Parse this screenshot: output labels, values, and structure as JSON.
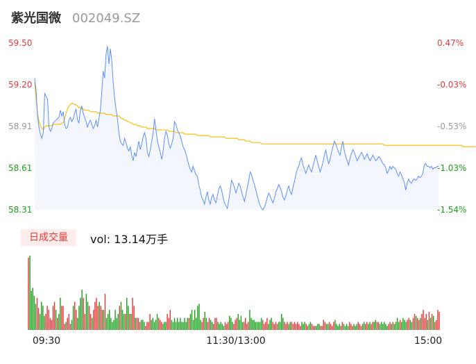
{
  "header": {
    "name": "紫光国微",
    "code": "002049.SZ"
  },
  "volume": {
    "tab_label": "日成交量",
    "readout": "vol: 13.14万手"
  },
  "colors": {
    "price": "#5b8ff9",
    "avg": "#f6bd16",
    "up": "#e03a3a",
    "down": "#1aa01a",
    "area": "#f3f6fd"
  },
  "chart_data": [
    {
      "type": "line",
      "title": "",
      "y_ticks_left": [
        "59.50",
        "59.20",
        "58.91",
        "58.61",
        "58.31"
      ],
      "y_ticks_right": [
        "0.47%",
        "-0.03%",
        "-0.53%",
        "-1.03%",
        "-1.54%"
      ],
      "ylim": [
        58.31,
        59.5
      ],
      "x_ticks": [
        "09:30",
        "11:30/13:00",
        "15:00"
      ],
      "series": [
        {
          "key": "price",
          "values": [
            59.25,
            59.16,
            58.98,
            58.9,
            58.85,
            58.82,
            58.86,
            59.14,
            59.12,
            59.1,
            58.9,
            58.87,
            58.89,
            58.93,
            58.94,
            58.95,
            58.96,
            58.97,
            59.02,
            58.98,
            59.01,
            58.92,
            58.89,
            58.9,
            58.95,
            58.97,
            58.94,
            58.96,
            59.0,
            59.03,
            58.95,
            58.93,
            59.02,
            59.05,
            59.0,
            58.97,
            58.94,
            58.9,
            58.93,
            58.95,
            58.92,
            58.89,
            58.91,
            58.95,
            58.9,
            58.96,
            59.02,
            59.15,
            59.3,
            59.25,
            59.42,
            59.48,
            59.35,
            59.46,
            59.38,
            59.22,
            59.11,
            59.03,
            58.96,
            58.86,
            58.8,
            58.78,
            58.77,
            58.82,
            58.79,
            58.75,
            58.73,
            58.76,
            58.7,
            58.66,
            58.72,
            58.69,
            58.75,
            58.8,
            58.74,
            58.78,
            58.83,
            58.86,
            58.82,
            58.72,
            58.69,
            58.74,
            58.8,
            58.86,
            58.96,
            58.88,
            58.8,
            58.76,
            58.72,
            58.67,
            58.73,
            58.82,
            58.87,
            58.84,
            58.78,
            58.75,
            58.78,
            58.82,
            58.94,
            58.92,
            58.88,
            58.86,
            58.84,
            58.8,
            58.76,
            58.74,
            58.71,
            58.67,
            58.63,
            58.6,
            58.58,
            58.62,
            58.59,
            58.56,
            58.55,
            58.49,
            58.45,
            58.4,
            58.38,
            58.35,
            58.4,
            58.44,
            58.38,
            58.35,
            58.4,
            58.42,
            58.38,
            58.36,
            58.41,
            58.46,
            58.48,
            58.45,
            58.4,
            58.36,
            58.34,
            58.32,
            58.38,
            58.45,
            58.52,
            58.5,
            58.47,
            58.43,
            58.46,
            58.5,
            58.48,
            58.44,
            58.4,
            58.37,
            58.42,
            58.47,
            58.52,
            58.58,
            58.56,
            58.52,
            58.49,
            58.45,
            58.41,
            58.37,
            58.34,
            58.32,
            58.31,
            58.33,
            58.36,
            58.4,
            58.43,
            58.41,
            58.38,
            58.36,
            58.39,
            58.44,
            58.46,
            58.49,
            58.47,
            58.44,
            58.4,
            58.38,
            58.41,
            58.45,
            58.48,
            58.44,
            58.42,
            58.47,
            58.51,
            58.56,
            58.6,
            58.62,
            58.66,
            58.68,
            58.63,
            58.6,
            58.57,
            58.6,
            58.63,
            58.6,
            58.58,
            58.62,
            58.66,
            58.7,
            58.66,
            58.62,
            58.58,
            58.61,
            58.65,
            58.7,
            58.74,
            58.68,
            58.64,
            58.67,
            58.72,
            58.76,
            58.8,
            58.78,
            58.75,
            58.72,
            58.7,
            58.76,
            58.8,
            58.73,
            58.69,
            58.66,
            58.63,
            58.68,
            58.71,
            58.74,
            58.72,
            58.69,
            58.66,
            58.68,
            58.7,
            58.72,
            58.7,
            58.67,
            58.69,
            58.71,
            58.68,
            58.66,
            58.68,
            58.7,
            58.68,
            58.66,
            58.67,
            58.69,
            58.68,
            58.66,
            58.64,
            58.63,
            58.61,
            58.57,
            58.59,
            58.62,
            58.6,
            58.62,
            58.61,
            58.6,
            58.57,
            58.55,
            58.58,
            58.56,
            58.53,
            58.51,
            58.45,
            58.5,
            58.53,
            58.51,
            58.5,
            58.52,
            58.53,
            58.52,
            58.53,
            58.55,
            58.54,
            58.55,
            58.57,
            58.63,
            58.64,
            58.62,
            58.62,
            58.61,
            58.62,
            58.6,
            58.61,
            58.61,
            58.62,
            58.62
          ]
        },
        {
          "key": "avg",
          "values": [
            59.22,
            59.1,
            59.0,
            58.94,
            58.91,
            58.89,
            58.88,
            58.9,
            58.91,
            58.91,
            58.91,
            58.91,
            58.91,
            58.92,
            58.92,
            58.92,
            58.92,
            58.92,
            58.92,
            58.93,
            58.93,
            58.96,
            59.0,
            59.03,
            59.05,
            59.06,
            59.07,
            59.07,
            59.06,
            59.06,
            59.05,
            59.04,
            59.04,
            59.03,
            59.03,
            59.02,
            59.02,
            59.02,
            59.02,
            59.01,
            59.01,
            59.01,
            59.01,
            59.01,
            59.0,
            59.0,
            59.0,
            59.0,
            59.0,
            59.0,
            58.99,
            58.99,
            58.99,
            58.99,
            58.99,
            58.98,
            58.98,
            58.98,
            58.98,
            58.98,
            58.97,
            58.96,
            58.96,
            58.95,
            58.95,
            58.94,
            58.94,
            58.93,
            58.93,
            58.92,
            58.92,
            58.92,
            58.91,
            58.91,
            58.91,
            58.9,
            58.9,
            58.9,
            58.9,
            58.89,
            58.89,
            58.89,
            58.89,
            58.89,
            58.89,
            58.88,
            58.88,
            58.88,
            58.88,
            58.88,
            58.88,
            58.88,
            58.88,
            58.88,
            58.87,
            58.87,
            58.87,
            58.87,
            58.87,
            58.86,
            58.86,
            58.86,
            58.86,
            58.86,
            58.86,
            58.85,
            58.85,
            58.85,
            58.85,
            58.85,
            58.85,
            58.85,
            58.85,
            58.85,
            58.84,
            58.84,
            58.84,
            58.84,
            58.84,
            58.84,
            58.84,
            58.84,
            58.84,
            58.83,
            58.83,
            58.83,
            58.83,
            58.83,
            58.83,
            58.83,
            58.83,
            58.83,
            58.83,
            58.83,
            58.82,
            58.82,
            58.82,
            58.82,
            58.82,
            58.82,
            58.82,
            58.82,
            58.82,
            58.81,
            58.81,
            58.81,
            58.81,
            58.81,
            58.8,
            58.8,
            58.8,
            58.8,
            58.79,
            58.79,
            58.79,
            58.79,
            58.79,
            58.79,
            58.79,
            58.78,
            58.78,
            58.78,
            58.78,
            58.78,
            58.78,
            58.78,
            58.78,
            58.78,
            58.78,
            58.78,
            58.78,
            58.78,
            58.78,
            58.78,
            58.78,
            58.78,
            58.78,
            58.78,
            58.78,
            58.78,
            58.78,
            58.78,
            58.78,
            58.78,
            58.78,
            58.78,
            58.78,
            58.78,
            58.78,
            58.78,
            58.78,
            58.78,
            58.78,
            58.78,
            58.78,
            58.78,
            58.78,
            58.78,
            58.78,
            58.78,
            58.78,
            58.78,
            58.78,
            58.78,
            58.78,
            58.78,
            58.78,
            58.78,
            58.78,
            58.78,
            58.78,
            58.78,
            58.78,
            58.78,
            58.78,
            58.78,
            58.78,
            58.78,
            58.78,
            58.78,
            58.78,
            58.78,
            58.78,
            58.78,
            58.78,
            58.78,
            58.78,
            58.78,
            58.78,
            58.78,
            58.78,
            58.78,
            58.78,
            58.78,
            58.78,
            58.78,
            58.78,
            58.78,
            58.78,
            58.78,
            58.78,
            58.78,
            58.78,
            58.78,
            58.78,
            58.77,
            58.77,
            58.77,
            58.77,
            58.77,
            58.77,
            58.77,
            58.77,
            58.77,
            58.77,
            58.77,
            58.77,
            58.77,
            58.77,
            58.77,
            58.77,
            58.77,
            58.77,
            58.77,
            58.77,
            58.77,
            58.77,
            58.77,
            58.77,
            58.77,
            58.77,
            58.77,
            58.77,
            58.77,
            58.77,
            58.77,
            58.77,
            58.77,
            58.77,
            58.77,
            58.77,
            58.77,
            58.77,
            58.77,
            58.77,
            58.77,
            58.77,
            58.77,
            58.77,
            58.77,
            58.77,
            58.77,
            58.77,
            58.77,
            58.77,
            58.77,
            58.77,
            58.77,
            58.77,
            58.77,
            58.76,
            58.76,
            58.76,
            58.76,
            58.76,
            58.76,
            58.76,
            58.76,
            58.76,
            58.76
          ]
        }
      ]
    },
    {
      "type": "bar",
      "title": "",
      "volume": [
        18.0,
        18.5,
        9.75,
        10.5,
        8.5,
        6.5,
        8,
        5.5,
        4,
        7,
        6,
        3.5,
        4,
        6,
        5,
        3,
        2.5,
        6,
        7,
        5,
        3,
        4,
        8,
        6,
        6,
        1.5,
        2,
        3,
        4,
        1.5,
        2.5,
        6,
        7,
        5,
        3,
        6,
        8,
        10,
        8,
        4,
        9,
        7,
        6,
        4,
        3,
        5,
        7,
        8,
        6,
        7,
        6,
        5,
        5,
        9,
        3,
        4,
        5,
        3,
        2,
        2.5,
        5,
        3,
        4,
        6,
        7,
        5,
        4,
        4,
        8,
        6,
        4,
        4,
        8,
        6,
        3,
        3,
        3,
        2,
        2.5,
        2.5,
        2,
        1,
        2,
        2,
        4,
        2.5,
        3,
        2,
        2.5,
        4,
        3,
        2.5,
        2,
        1.5,
        2,
        2,
        4,
        3,
        5,
        2.5,
        2,
        3,
        2,
        3,
        2,
        3,
        2,
        2,
        3,
        2,
        3,
        3,
        4,
        5,
        2.5,
        5,
        3,
        6,
        6.5,
        2.5,
        2,
        3,
        4.5,
        3,
        2,
        3,
        2.5,
        2,
        1.5,
        3,
        3,
        2,
        1.5,
        2,
        1.5,
        1,
        2,
        1.5,
        2,
        3.5,
        3,
        2,
        1.5,
        2.5,
        3,
        4,
        2.5,
        3.5,
        2,
        2,
        3,
        1.5,
        2,
        5,
        3,
        2.5,
        2.5,
        2,
        2,
        2,
        2,
        3,
        2.5,
        1.5,
        2,
        3,
        1.5,
        2.5,
        3,
        2,
        1.5,
        2,
        1.5,
        2,
        2,
        4,
        3,
        2,
        1.5,
        2,
        1.5,
        2,
        2,
        1.5,
        2,
        1.5,
        2,
        1.5,
        1,
        2,
        1.5,
        2,
        1.5,
        1,
        1.5,
        2,
        1.5,
        1,
        1,
        1,
        1.5,
        1.5,
        1,
        1,
        2.5,
        2,
        1.5,
        1.5,
        2,
        1.5,
        1,
        2,
        2.5,
        1.5,
        1,
        1.5,
        1,
        2,
        1.5,
        1,
        1.5,
        1,
        2,
        1.5,
        1,
        1.5,
        1,
        1.5,
        2,
        1.5,
        1,
        1.5,
        2,
        1.5,
        2,
        1.5,
        2,
        1.5,
        2,
        2,
        2.5,
        2,
        2,
        1.5,
        2,
        1.5,
        2,
        1.5,
        1,
        1.5,
        2,
        1.5,
        2,
        1.5,
        2,
        3,
        2,
        2.5,
        2,
        3,
        2.5,
        2,
        2.5,
        3,
        2.5,
        2,
        3,
        4,
        3.5,
        3,
        2.5,
        3,
        4,
        5,
        3,
        4,
        2.5,
        4.5,
        3,
        4,
        3.5,
        2,
        2.5,
        5,
        4.5
      ],
      "volume_units": "万手"
    }
  ]
}
